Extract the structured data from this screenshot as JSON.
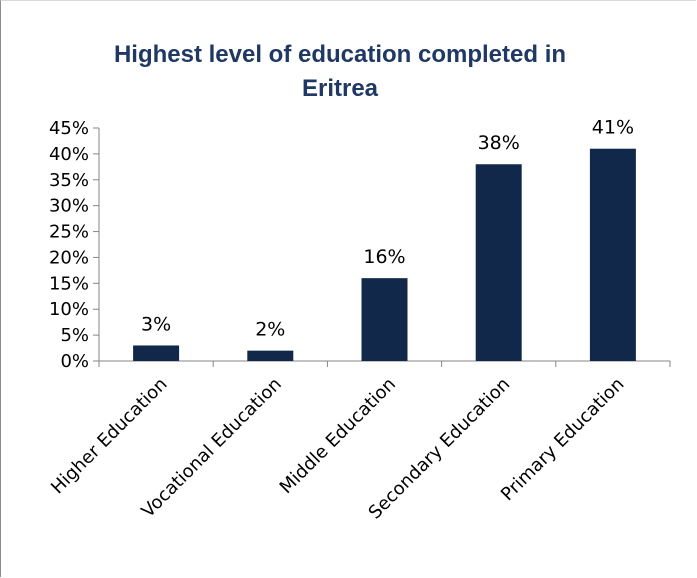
{
  "chart_data": {
    "type": "bar",
    "title": "Highest level of education completed in Eritrea",
    "categories": [
      "Higher Education",
      "Vocational Education",
      "Middle Education",
      "Secondary Education",
      "Primary Education"
    ],
    "values": [
      3,
      2,
      16,
      38,
      41
    ],
    "value_labels": [
      "3%",
      "2%",
      "16%",
      "38%",
      "41%"
    ],
    "ylim": [
      0,
      45
    ],
    "y_ticks": [
      0,
      5,
      10,
      15,
      20,
      25,
      30,
      35,
      40,
      45
    ],
    "y_tick_labels": [
      "0%",
      "5%",
      "10%",
      "15%",
      "20%",
      "25%",
      "30%",
      "35%",
      "40%",
      "45%"
    ],
    "xlabel": "",
    "ylabel": "",
    "grid": false,
    "legend": "none",
    "bar_color": "#12284a"
  }
}
